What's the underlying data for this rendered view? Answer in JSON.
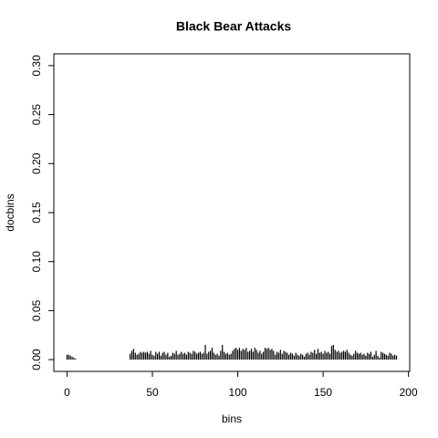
{
  "chart_data": {
    "type": "line",
    "style": "h",
    "title": "Black Bear Attacks",
    "xlabel": "bins",
    "ylabel": "docbins",
    "color": "#000000",
    "x": [
      0,
      1,
      2,
      3,
      4,
      5,
      6,
      7,
      8,
      9,
      10,
      11,
      12,
      13,
      14,
      15,
      16,
      17,
      18,
      19,
      20,
      21,
      22,
      23,
      24,
      25,
      26,
      27,
      28,
      29,
      30,
      31,
      32,
      33,
      34,
      35,
      36,
      37,
      38,
      39,
      40,
      41,
      42,
      43,
      44,
      45,
      46,
      47,
      48,
      49,
      50,
      51,
      52,
      53,
      54,
      55,
      56,
      57,
      58,
      59,
      60,
      61,
      62,
      63,
      64,
      65,
      66,
      67,
      68,
      69,
      70,
      71,
      72,
      73,
      74,
      75,
      76,
      77,
      78,
      79,
      80,
      81,
      82,
      83,
      84,
      85,
      86,
      87,
      88,
      89,
      90,
      91,
      92,
      93,
      94,
      95,
      96,
      97,
      98,
      99,
      100,
      101,
      102,
      103,
      104,
      105,
      106,
      107,
      108,
      109,
      110,
      111,
      112,
      113,
      114,
      115,
      116,
      117,
      118,
      119,
      120,
      121,
      122,
      123,
      124,
      125,
      126,
      127,
      128,
      129,
      130,
      131,
      132,
      133,
      134,
      135,
      136,
      137,
      138,
      139,
      140,
      141,
      142,
      143,
      144,
      145,
      146,
      147,
      148,
      149,
      150,
      151,
      152,
      153,
      154,
      155,
      156,
      157,
      158,
      159,
      160,
      161,
      162,
      163,
      164,
      165,
      166,
      167,
      168,
      169,
      170,
      171,
      172,
      173,
      174,
      175,
      176,
      177,
      178,
      179,
      180,
      181,
      182,
      183,
      184,
      185,
      186,
      187,
      188,
      189,
      190,
      191,
      192,
      193
    ],
    "values": [
      0.005,
      0.005,
      0.004,
      0.003,
      0.002,
      0.001,
      0,
      0,
      0,
      0,
      0,
      0,
      0,
      0,
      0,
      0,
      0,
      0,
      0,
      0,
      0,
      0,
      0,
      0,
      0,
      0,
      0,
      0,
      0,
      0,
      0,
      0,
      0,
      0,
      0,
      0,
      0,
      0.006,
      0.009,
      0.011,
      0.007,
      0.005,
      0.006,
      0.008,
      0.007,
      0.008,
      0.007,
      0.008,
      0.006,
      0.009,
      0.005,
      0.004,
      0.008,
      0.006,
      0.008,
      0.004,
      0.007,
      0.008,
      0.005,
      0.007,
      0.003,
      0.004,
      0.007,
      0.006,
      0.009,
      0.005,
      0.006,
      0.008,
      0.006,
      0.007,
      0.005,
      0.008,
      0.007,
      0.006,
      0.009,
      0.008,
      0.006,
      0.007,
      0.008,
      0.006,
      0.007,
      0.015,
      0.006,
      0.008,
      0.009,
      0.012,
      0.007,
      0.005,
      0.006,
      0.004,
      0.009,
      0.015,
      0.008,
      0.006,
      0.007,
      0.005,
      0.006,
      0.009,
      0.011,
      0.012,
      0.01,
      0.012,
      0.009,
      0.011,
      0.01,
      0.012,
      0.008,
      0.009,
      0.011,
      0.008,
      0.012,
      0.01,
      0.007,
      0.009,
      0.006,
      0.008,
      0.012,
      0.011,
      0.012,
      0.01,
      0.011,
      0.009,
      0.005,
      0.008,
      0.007,
      0.01,
      0.006,
      0.009,
      0.008,
      0.007,
      0.005,
      0.007,
      0.006,
      0.004,
      0.007,
      0.005,
      0.004,
      0.006,
      0.005,
      0.003,
      0.006,
      0.007,
      0.005,
      0.008,
      0.007,
      0.01,
      0.006,
      0.011,
      0.007,
      0.008,
      0.006,
      0.009,
      0.007,
      0.008,
      0.006,
      0.014,
      0.015,
      0.01,
      0.008,
      0.009,
      0.007,
      0.008,
      0.009,
      0.008,
      0.01,
      0.007,
      0.005,
      0.004,
      0.006,
      0.009,
      0.007,
      0.006,
      0.007,
      0.005,
      0.006,
      0.004,
      0.007,
      0.006,
      0.008,
      0.003,
      0.005,
      0.009,
      0.004,
      0.002,
      0.008,
      0.007,
      0.006,
      0.005,
      0.004,
      0.007,
      0.006,
      0.004,
      0.005,
      0.004
    ],
    "xlim": [
      -7.72,
      200.72
    ],
    "ylim": [
      -0.012,
      0.312
    ],
    "xticks": [
      0,
      50,
      100,
      150,
      200
    ],
    "yticks": [
      {
        "value": 0,
        "label": "0.00"
      },
      0.05,
      {
        "value": 0.1,
        "label": "0.10"
      },
      0.15,
      {
        "value": 0.2,
        "label": "0.20"
      },
      0.25,
      {
        "value": 0.3,
        "label": "0.30"
      }
    ],
    "grid": false
  }
}
